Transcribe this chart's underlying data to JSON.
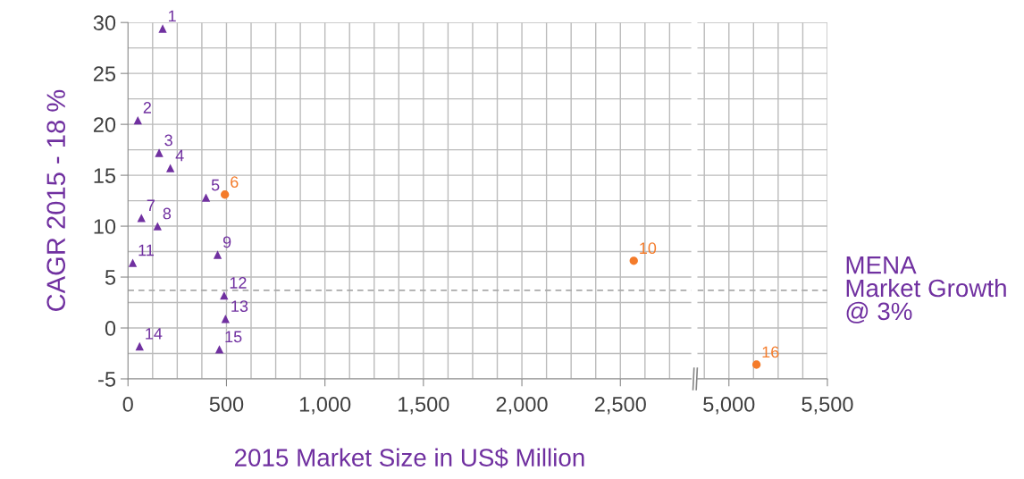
{
  "chart_data": [
    {
      "type": "scatter",
      "xlabel": "2015 Market Size in US$ Million",
      "ylabel": "CAGR 2015 - 18 %",
      "xlim": [
        0,
        2860
      ],
      "ylim": [
        -5,
        30
      ],
      "xticks": [
        0,
        500,
        {
          "value": 1000,
          "label": "1,000"
        },
        {
          "value": 1500,
          "label": "1,500"
        },
        {
          "value": 2000,
          "label": "2,000"
        },
        {
          "value": 2500,
          "label": "2,500"
        }
      ],
      "yticks": [
        {
          "value": -5,
          "label": "-5"
        },
        0,
        5,
        10,
        15,
        20,
        25,
        30
      ],
      "grid": true,
      "series": [
        {
          "color": "#7030a0",
          "marker": "triangle",
          "x": [
            176,
            50,
            158,
            215,
            396,
            68,
            150,
            455,
            24,
            488,
            495,
            59,
            464
          ],
          "values": [
            29.4,
            20.4,
            17.2,
            15.7,
            12.8,
            10.8,
            10.0,
            7.2,
            6.4,
            3.2,
            0.9,
            -1.8,
            -2.1
          ]
        },
        {
          "color": "#f47b2a",
          "marker": "circle",
          "x": [
            492,
            2568
          ],
          "values": [
            13.1,
            6.6
          ]
        }
      ],
      "ref_lines": [
        {
          "axis": "y",
          "value": 3.7,
          "color": "#aaaaaa",
          "line_style": "dashed"
        }
      ],
      "annotations": [
        {
          "text": "1",
          "x": 176,
          "y": 29.4
        },
        {
          "text": "2",
          "x": 50,
          "y": 20.4
        },
        {
          "text": "3",
          "x": 158,
          "y": 17.2
        },
        {
          "text": "4",
          "x": 215,
          "y": 15.7
        },
        {
          "text": "5",
          "x": 396,
          "y": 12.8
        },
        {
          "text": "6",
          "x": 492,
          "y": 13.1
        },
        {
          "text": "7",
          "x": 68,
          "y": 10.8
        },
        {
          "text": "8",
          "x": 150,
          "y": 10.0
        },
        {
          "text": "9",
          "x": 455,
          "y": 7.2
        },
        {
          "text": "10",
          "x": 2568,
          "y": 6.6
        },
        {
          "text": "11",
          "x": 24,
          "y": 6.4
        },
        {
          "text": "12",
          "x": 488,
          "y": 3.2
        },
        {
          "text": "13",
          "x": 495,
          "y": 0.9
        },
        {
          "text": "14",
          "x": 59,
          "y": -1.8
        },
        {
          "text": "15",
          "x": 464,
          "y": -2.1
        }
      ]
    },
    {
      "type": "scatter",
      "xlim": [
        4840,
        5500
      ],
      "ylim": [
        -5,
        30
      ],
      "xticks": [
        {
          "value": 5000,
          "label": "5,000"
        },
        {
          "value": 5500,
          "label": "5,500"
        }
      ],
      "yticks": [
        -5,
        0,
        5,
        10,
        15,
        20,
        25,
        30
      ],
      "tick_labels": "x",
      "grid": true,
      "series": [
        {
          "color": "#f47b2a",
          "marker": "circle",
          "x": [
            5140
          ],
          "values": [
            -3.6
          ]
        }
      ],
      "ref_lines": [
        {
          "axis": "y",
          "value": 3.7,
          "label": "MENA\nMarket Growth\n@ 3%",
          "color": "#aaaaaa",
          "line_style": "dashed"
        }
      ],
      "annotations": [
        {
          "text": "16",
          "x": 5140,
          "y": -3.6
        }
      ]
    }
  ]
}
